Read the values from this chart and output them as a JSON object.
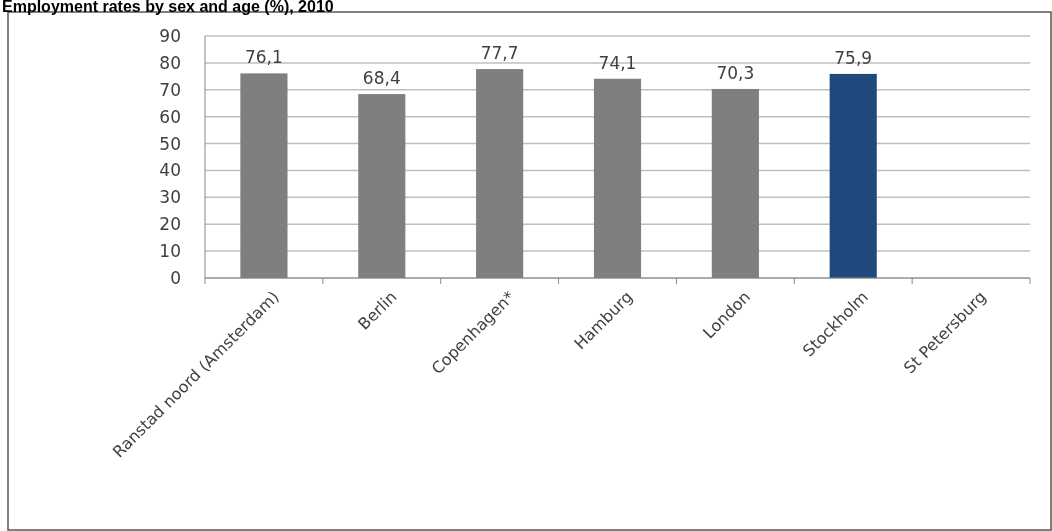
{
  "chart_data": {
    "type": "bar",
    "title": "Employment rates by sex and age (%), 2010",
    "categories": [
      "Ranstad noord (Amsterdam)",
      "Berlin",
      "Copenhagen*",
      "Hamburg",
      "London",
      "Stockholm",
      "St Petersburg"
    ],
    "values": [
      76.1,
      68.4,
      77.7,
      74.1,
      70.3,
      75.9,
      null
    ],
    "colors": [
      "#7f7f7f",
      "#7f7f7f",
      "#7f7f7f",
      "#7f7f7f",
      "#7f7f7f",
      "#1f497d",
      null
    ],
    "value_labels": [
      "76,1",
      "68,4",
      "77,7",
      "74,1",
      "70,3",
      "75,9",
      null
    ],
    "ylim": [
      0,
      90
    ],
    "yticks": [
      0,
      10,
      20,
      30,
      40,
      50,
      60,
      70,
      80,
      90
    ],
    "grid": "y"
  }
}
